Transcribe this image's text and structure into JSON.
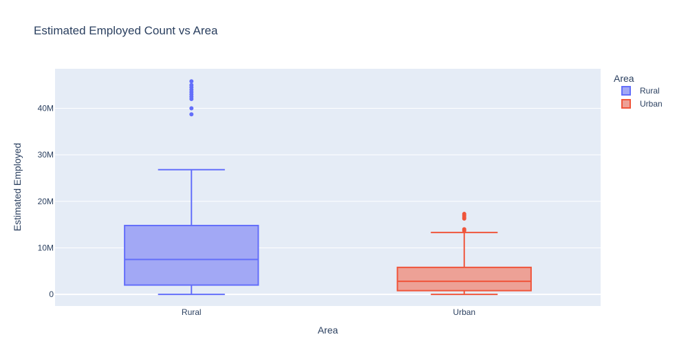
{
  "chart_data": {
    "type": "box",
    "title": "Estimated Employed Count vs Area",
    "xlabel": "Area",
    "ylabel": "Estimated Employed",
    "categories": [
      "Rural",
      "Urban"
    ],
    "ylim": [
      -2500000,
      48500000
    ],
    "yticks": [
      0,
      10000000,
      20000000,
      30000000,
      40000000
    ],
    "ytick_labels": [
      "0",
      "10M",
      "20M",
      "30M",
      "40M"
    ],
    "grid": true,
    "legend": {
      "title": "Area",
      "placement": "top-right"
    },
    "series": [
      {
        "name": "Rural",
        "color": "#636efa",
        "fill": "#a2a8f5",
        "min": 0,
        "q1": 2000000,
        "median": 7500000,
        "q3": 14800000,
        "max": 26800000,
        "outliers": [
          38700000,
          40000000,
          42000000,
          42500000,
          43000000,
          43500000,
          44000000,
          44500000,
          45000000,
          45800000
        ]
      },
      {
        "name": "Urban",
        "color": "#ef553b",
        "fill": "#eda196",
        "min": 0,
        "q1": 800000,
        "median": 2800000,
        "q3": 5800000,
        "max": 13300000,
        "outliers": [
          13700000,
          14000000,
          16300000,
          16600000,
          17000000,
          17300000
        ]
      }
    ]
  }
}
